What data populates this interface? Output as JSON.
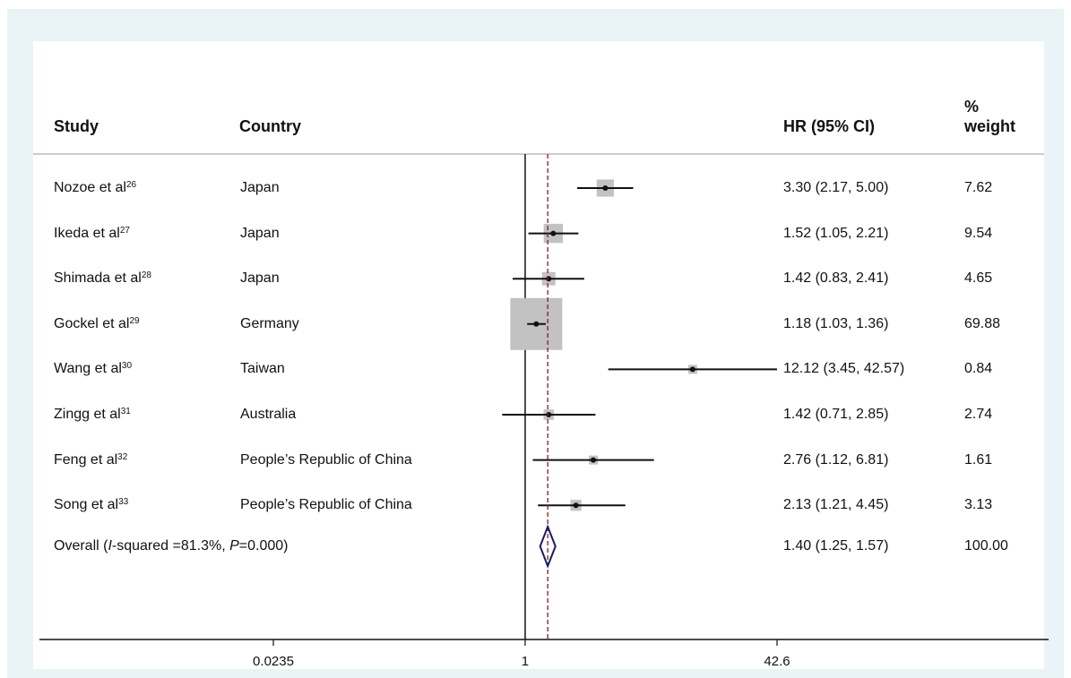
{
  "columns": {
    "study": "Study",
    "country": "Country",
    "hr": "HR (95% CI)",
    "weight_top": "%",
    "weight_bottom": "weight"
  },
  "chart_data": {
    "type": "forest",
    "x_scale": "log",
    "xlim": [
      0.0235,
      42.6
    ],
    "x_ticks": [
      0.0235,
      1,
      42.6
    ],
    "x_tick_labels": [
      "0.0235",
      "1",
      "42.6"
    ],
    "null_line": 1,
    "overall_line": 1.4,
    "rows": [
      {
        "author": "Nozoe et al",
        "ref": "26",
        "country": "Japan",
        "hr": 3.3,
        "lo": 2.17,
        "hi": 5.0,
        "hr_text": "3.30 (2.17, 5.00)",
        "weight": 7.62,
        "weight_text": "7.62"
      },
      {
        "author": "Ikeda et al",
        "ref": "27",
        "country": "Japan",
        "hr": 1.52,
        "lo": 1.05,
        "hi": 2.21,
        "hr_text": "1.52 (1.05, 2.21)",
        "weight": 9.54,
        "weight_text": "9.54"
      },
      {
        "author": "Shimada et al",
        "ref": "28",
        "country": "Japan",
        "hr": 1.42,
        "lo": 0.83,
        "hi": 2.41,
        "hr_text": "1.42 (0.83, 2.41)",
        "weight": 4.65,
        "weight_text": "4.65"
      },
      {
        "author": "Gockel et al",
        "ref": "29",
        "country": "Germany",
        "hr": 1.18,
        "lo": 1.03,
        "hi": 1.36,
        "hr_text": "1.18 (1.03, 1.36)",
        "weight": 69.88,
        "weight_text": "69.88"
      },
      {
        "author": "Wang et al",
        "ref": "30",
        "country": "Taiwan",
        "hr": 12.12,
        "lo": 3.45,
        "hi": 42.57,
        "hr_text": "12.12 (3.45, 42.57)",
        "weight": 0.84,
        "weight_text": "0.84"
      },
      {
        "author": "Zingg et al",
        "ref": "31",
        "country": "Australia",
        "hr": 1.42,
        "lo": 0.71,
        "hi": 2.85,
        "hr_text": "1.42 (0.71, 2.85)",
        "weight": 2.74,
        "weight_text": "2.74"
      },
      {
        "author": "Feng et al",
        "ref": "32",
        "country": "People’s Republic of China",
        "hr": 2.76,
        "lo": 1.12,
        "hi": 6.81,
        "hr_text": "2.76 (1.12, 6.81)",
        "weight": 1.61,
        "weight_text": "1.61"
      },
      {
        "author": "Song et al",
        "ref": "33",
        "country": "People’s Republic of China",
        "hr": 2.13,
        "lo": 1.21,
        "hi": 4.45,
        "hr_text": "2.13 (1.21, 4.45)",
        "weight": 3.13,
        "weight_text": "3.13"
      }
    ],
    "overall": {
      "label_prefix": "Overall  (",
      "label_i": "I",
      "label_mid": "-squared =81.3%, ",
      "label_p": "P",
      "label_suffix": "=0.000)",
      "hr": 1.4,
      "lo": 1.25,
      "hi": 1.57,
      "hr_text": "1.40 (1.25, 1.57)",
      "weight_text": "100.00"
    },
    "colors": {
      "square": "#c2c2c2",
      "line": "#111111",
      "overall_line": "#8b1a2b",
      "diamond": "#1c1c5e"
    }
  }
}
